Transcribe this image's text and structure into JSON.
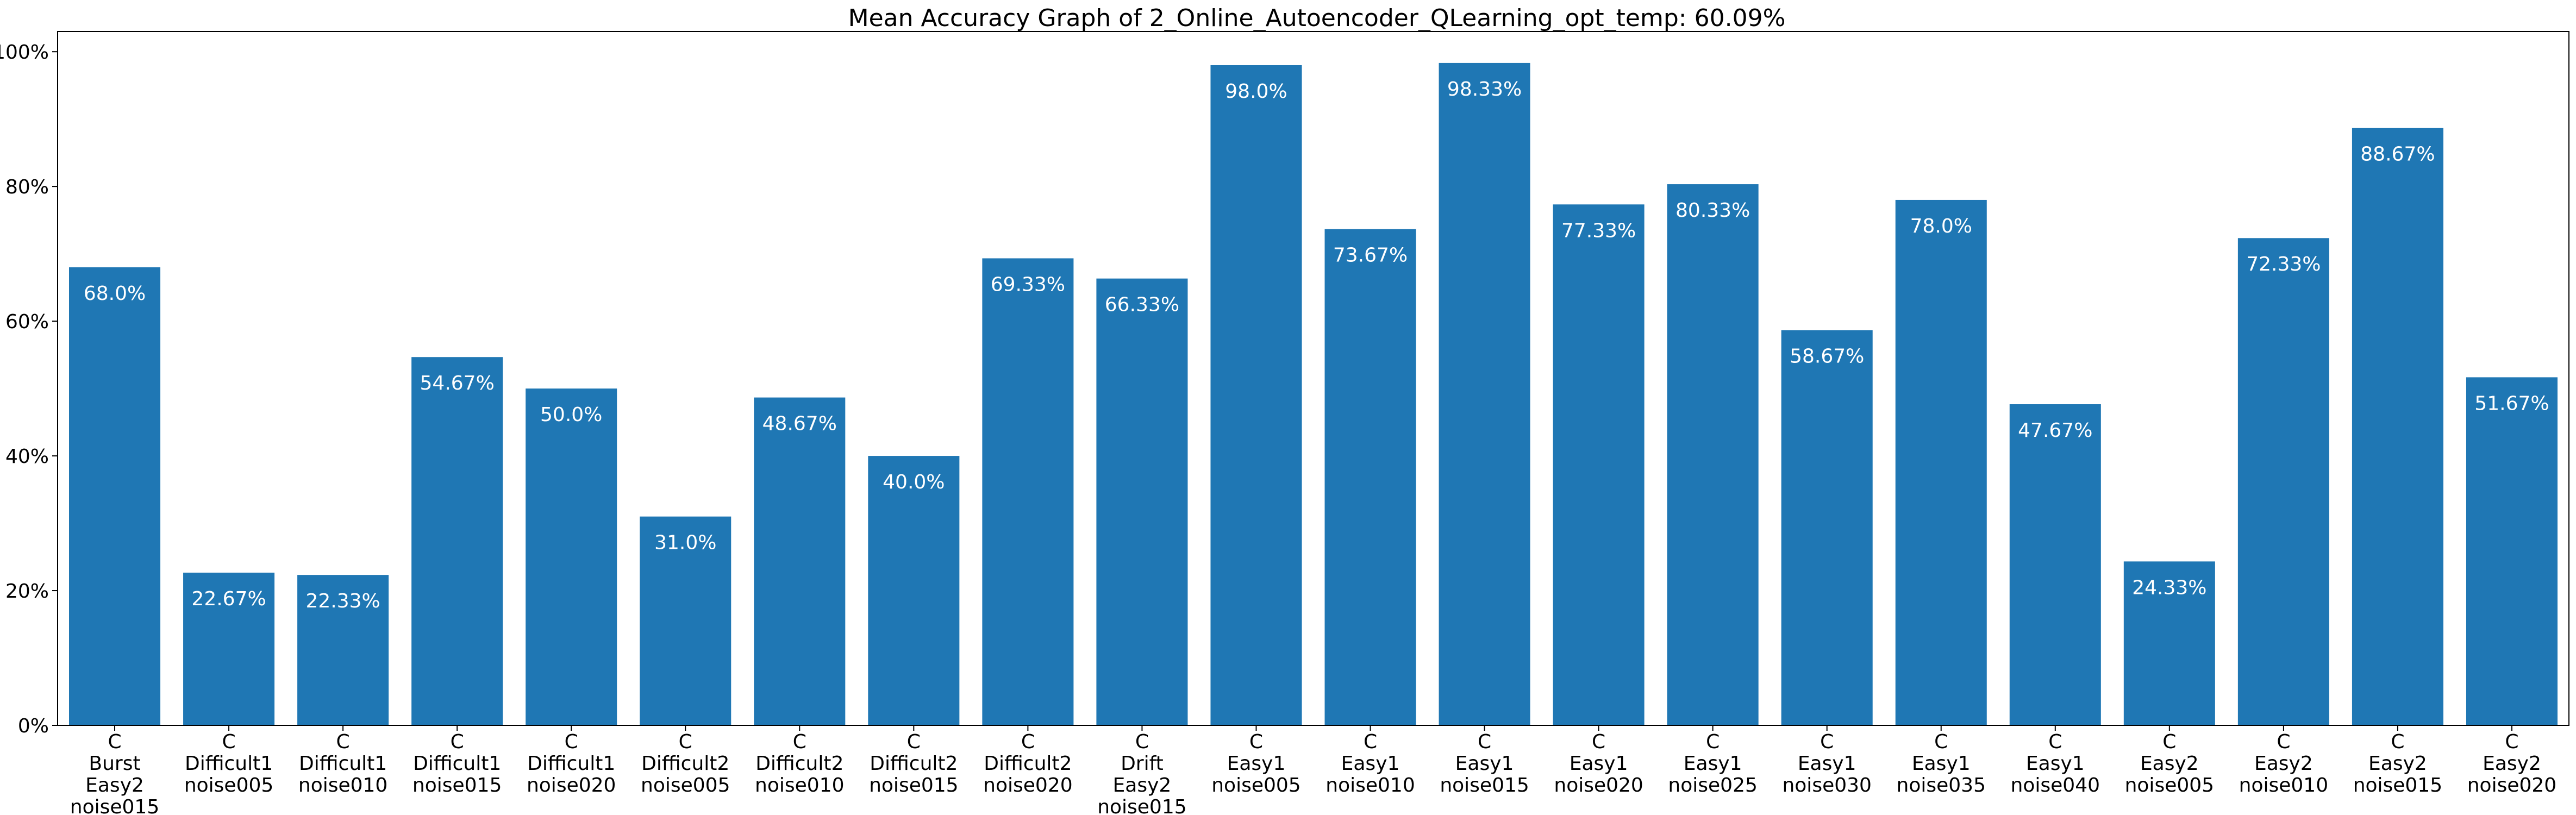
{
  "chart_data": {
    "type": "bar",
    "title": "Mean Accuracy Graph of 2_Online_Autoencoder_QLearning_opt_temp: 60.09%",
    "xlabel": "",
    "ylabel": "",
    "ylim": [
      0,
      103
    ],
    "grid": false,
    "bar_color": "#1f77b4",
    "label_color": "#ffffff",
    "y_ticks": [
      0,
      20,
      40,
      60,
      80,
      100
    ],
    "y_tick_labels": [
      "0%",
      "20%",
      "40%",
      "60%",
      "80%",
      "100%"
    ],
    "categories": [
      [
        "C",
        "Burst",
        "Easy2",
        "noise015"
      ],
      [
        "C",
        "Difficult1",
        "noise005"
      ],
      [
        "C",
        "Difficult1",
        "noise010"
      ],
      [
        "C",
        "Difficult1",
        "noise015"
      ],
      [
        "C",
        "Difficult1",
        "noise020"
      ],
      [
        "C",
        "Difficult2",
        "noise005"
      ],
      [
        "C",
        "Difficult2",
        "noise010"
      ],
      [
        "C",
        "Difficult2",
        "noise015"
      ],
      [
        "C",
        "Difficult2",
        "noise020"
      ],
      [
        "C",
        "Drift",
        "Easy2",
        "noise015"
      ],
      [
        "C",
        "Easy1",
        "noise005"
      ],
      [
        "C",
        "Easy1",
        "noise010"
      ],
      [
        "C",
        "Easy1",
        "noise015"
      ],
      [
        "C",
        "Easy1",
        "noise020"
      ],
      [
        "C",
        "Easy1",
        "noise025"
      ],
      [
        "C",
        "Easy1",
        "noise030"
      ],
      [
        "C",
        "Easy1",
        "noise035"
      ],
      [
        "C",
        "Easy1",
        "noise040"
      ],
      [
        "C",
        "Easy2",
        "noise005"
      ],
      [
        "C",
        "Easy2",
        "noise010"
      ],
      [
        "C",
        "Easy2",
        "noise015"
      ],
      [
        "C",
        "Easy2",
        "noise020"
      ]
    ],
    "values": [
      68.0,
      22.67,
      22.33,
      54.67,
      50.0,
      31.0,
      48.67,
      40.0,
      69.33,
      66.33,
      98.0,
      73.67,
      98.33,
      77.33,
      80.33,
      58.67,
      78.0,
      47.67,
      24.33,
      72.33,
      88.67,
      51.67
    ],
    "value_labels": [
      "68.0%",
      "22.67%",
      "22.33%",
      "54.67%",
      "50.0%",
      "31.0%",
      "48.67%",
      "40.0%",
      "69.33%",
      "66.33%",
      "98.0%",
      "73.67%",
      "98.33%",
      "77.33%",
      "80.33%",
      "58.67%",
      "78.0%",
      "47.67%",
      "24.33%",
      "72.33%",
      "88.67%",
      "51.67%"
    ]
  }
}
